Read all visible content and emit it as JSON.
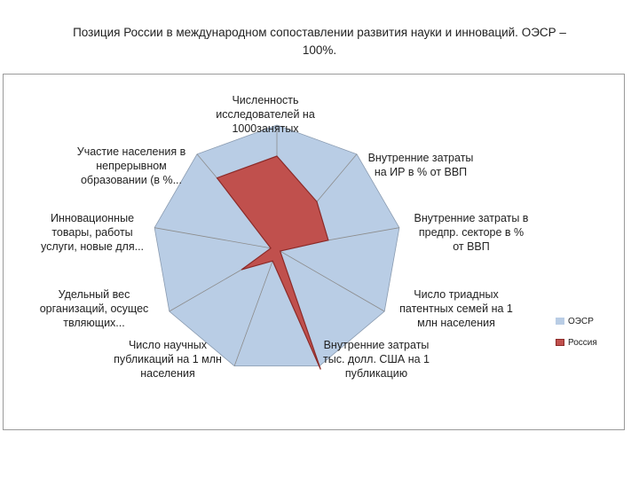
{
  "page": {
    "title_line1": "Позиция России в международном сопоставлении развития науки и инноваций. ОЭСР –",
    "title_line2": "100%."
  },
  "chart_data": {
    "type": "radar",
    "title": "",
    "axes": [
      [
        "Численность",
        "исследователей на",
        "1000занятых"
      ],
      [
        "Внутренние затраты",
        "на ИР в % от ВВП"
      ],
      [
        "Внутренние затраты в",
        "предпр. секторе в %",
        "от ВВП"
      ],
      [
        "Число триадных",
        "патентных семей на 1",
        "млн населения"
      ],
      [
        "Внутренние затраты",
        "тыс. долл. США на 1",
        "публикацию"
      ],
      [
        "Число научных",
        "публикаций на 1 млн",
        "населения"
      ],
      [
        "Удельный вес",
        "организаций, осущес",
        "твляющих..."
      ],
      [
        "Инновационные",
        "товары, работы",
        "услуги, новые для..."
      ],
      [
        "Участие населения в",
        "непрерывном",
        "образовании (в %..."
      ]
    ],
    "rmax": 100,
    "series": [
      {
        "name": "ОЭСР",
        "color": "#b9cde5",
        "stroke": "#8a9bb0",
        "values": [
          100,
          100,
          100,
          100,
          100,
          100,
          100,
          100,
          100
        ]
      },
      {
        "name": "Россия",
        "color": "#c0504d",
        "stroke": "#8b2a28",
        "values": [
          75,
          50,
          42,
          3,
          103,
          10,
          33,
          5,
          75
        ]
      }
    ],
    "legend_position": "right",
    "grid": true
  }
}
